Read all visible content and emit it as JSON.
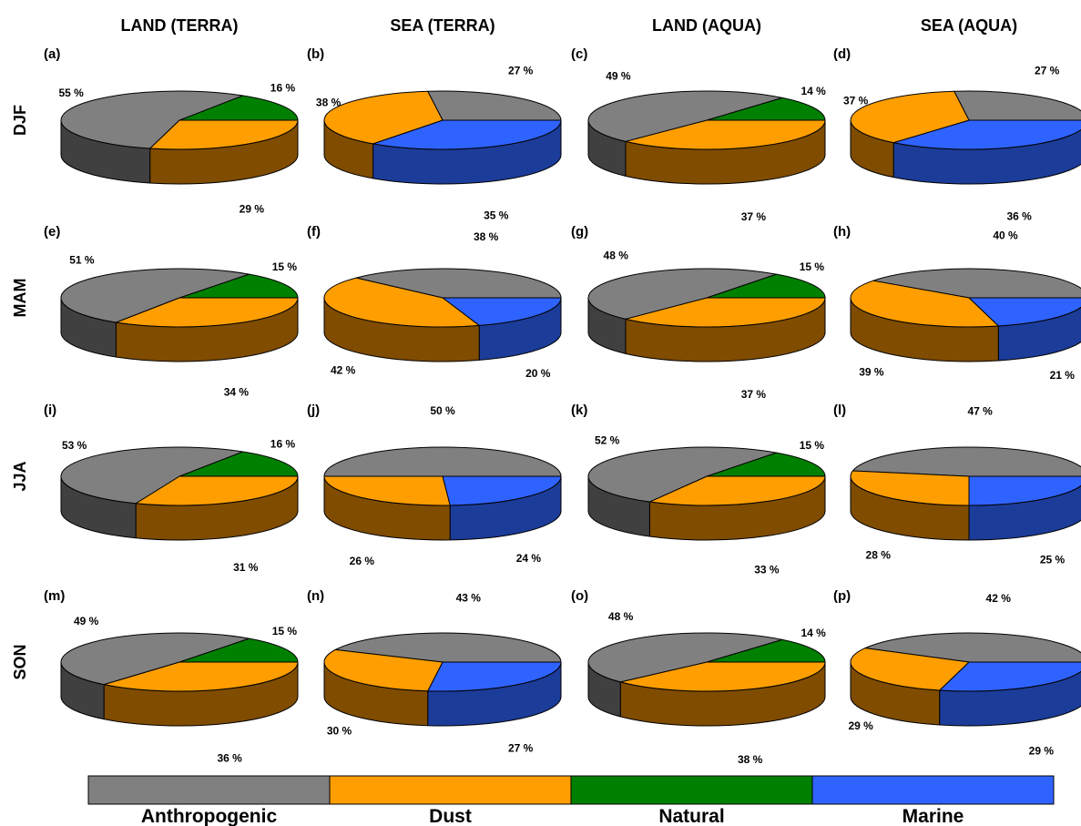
{
  "column_titles": [
    "LAND (TERRA)",
    "SEA (TERRA)",
    "LAND (AQUA)",
    "SEA (AQUA)"
  ],
  "row_titles": [
    "DJF",
    "MAM",
    "JJA",
    "SON"
  ],
  "legend": [
    {
      "key": "anthropogenic",
      "label": "Anthropogenic",
      "color": "#808080"
    },
    {
      "key": "dust",
      "label": "Dust",
      "color": "#ff9e00"
    },
    {
      "key": "natural",
      "label": "Natural",
      "color": "#008000"
    },
    {
      "key": "marine",
      "label": "Marine",
      "color": "#2f63ff"
    }
  ],
  "colors": {
    "anthropogenic_side": "#404040",
    "dust_side": "#7f4c00",
    "outline": "#000000"
  },
  "chart_data": {
    "type": "pie",
    "panels": [
      {
        "letter": "(a)",
        "season": "DJF",
        "region": "LAND (TERRA)",
        "slices": [
          {
            "category": "Dust",
            "value": 29,
            "label": "29 %"
          },
          {
            "category": "Natural",
            "value": 16,
            "label": "16 %"
          },
          {
            "category": "Anthropogenic",
            "value": 55,
            "label": "55 %"
          }
        ]
      },
      {
        "letter": "(b)",
        "season": "DJF",
        "region": "SEA (TERRA)",
        "slices": [
          {
            "category": "Marine",
            "value": 35,
            "label": "35 %"
          },
          {
            "category": "Anthropogenic",
            "value": 27,
            "label": "27 %"
          },
          {
            "category": "Dust",
            "value": 38,
            "label": "38 %"
          }
        ]
      },
      {
        "letter": "(c)",
        "season": "DJF",
        "region": "LAND (AQUA)",
        "slices": [
          {
            "category": "Dust",
            "value": 37,
            "label": "37 %"
          },
          {
            "category": "Natural",
            "value": 14,
            "label": "14 %"
          },
          {
            "category": "Anthropogenic",
            "value": 49,
            "label": "49 %"
          }
        ]
      },
      {
        "letter": "(d)",
        "season": "DJF",
        "region": "SEA (AQUA)",
        "slices": [
          {
            "category": "Marine",
            "value": 36,
            "label": "36 %"
          },
          {
            "category": "Anthropogenic",
            "value": 27,
            "label": "27 %"
          },
          {
            "category": "Dust",
            "value": 37,
            "label": "37 %"
          }
        ]
      },
      {
        "letter": "(e)",
        "season": "MAM",
        "region": "LAND (TERRA)",
        "slices": [
          {
            "category": "Dust",
            "value": 34,
            "label": "34 %"
          },
          {
            "category": "Natural",
            "value": 15,
            "label": "15 %"
          },
          {
            "category": "Anthropogenic",
            "value": 51,
            "label": "51 %"
          }
        ]
      },
      {
        "letter": "(f)",
        "season": "MAM",
        "region": "SEA (TERRA)",
        "slices": [
          {
            "category": "Marine",
            "value": 20,
            "label": "20 %"
          },
          {
            "category": "Anthropogenic",
            "value": 38,
            "label": "38 %"
          },
          {
            "category": "Dust",
            "value": 42,
            "label": "42 %"
          }
        ]
      },
      {
        "letter": "(g)",
        "season": "MAM",
        "region": "LAND (AQUA)",
        "slices": [
          {
            "category": "Dust",
            "value": 37,
            "label": "37 %"
          },
          {
            "category": "Natural",
            "value": 15,
            "label": "15 %"
          },
          {
            "category": "Anthropogenic",
            "value": 48,
            "label": "48 %"
          }
        ]
      },
      {
        "letter": "(h)",
        "season": "MAM",
        "region": "SEA (AQUA)",
        "slices": [
          {
            "category": "Marine",
            "value": 21,
            "label": "21 %"
          },
          {
            "category": "Anthropogenic",
            "value": 40,
            "label": "40 %"
          },
          {
            "category": "Dust",
            "value": 39,
            "label": "39 %"
          }
        ]
      },
      {
        "letter": "(i)",
        "season": "JJA",
        "region": "LAND (TERRA)",
        "slices": [
          {
            "category": "Dust",
            "value": 31,
            "label": "31 %"
          },
          {
            "category": "Natural",
            "value": 16,
            "label": "16 %"
          },
          {
            "category": "Anthropogenic",
            "value": 53,
            "label": "53 %"
          }
        ]
      },
      {
        "letter": "(j)",
        "season": "JJA",
        "region": "SEA (TERRA)",
        "slices": [
          {
            "category": "Marine",
            "value": 24,
            "label": "24 %"
          },
          {
            "category": "Anthropogenic",
            "value": 50,
            "label": "50 %"
          },
          {
            "category": "Dust",
            "value": 26,
            "label": "26 %"
          }
        ]
      },
      {
        "letter": "(k)",
        "season": "JJA",
        "region": "LAND (AQUA)",
        "slices": [
          {
            "category": "Dust",
            "value": 33,
            "label": "33 %"
          },
          {
            "category": "Natural",
            "value": 15,
            "label": "15 %"
          },
          {
            "category": "Anthropogenic",
            "value": 52,
            "label": "52 %"
          }
        ]
      },
      {
        "letter": "(l)",
        "season": "JJA",
        "region": "SEA (AQUA)",
        "slices": [
          {
            "category": "Marine",
            "value": 25,
            "label": "25 %"
          },
          {
            "category": "Anthropogenic",
            "value": 47,
            "label": "47 %"
          },
          {
            "category": "Dust",
            "value": 28,
            "label": "28 %"
          }
        ]
      },
      {
        "letter": "(m)",
        "season": "SON",
        "region": "LAND (TERRA)",
        "slices": [
          {
            "category": "Dust",
            "value": 36,
            "label": "36 %"
          },
          {
            "category": "Natural",
            "value": 15,
            "label": "15 %"
          },
          {
            "category": "Anthropogenic",
            "value": 49,
            "label": "49 %"
          }
        ]
      },
      {
        "letter": "(n)",
        "season": "SON",
        "region": "SEA (TERRA)",
        "slices": [
          {
            "category": "Marine",
            "value": 27,
            "label": "27 %"
          },
          {
            "category": "Anthropogenic",
            "value": 43,
            "label": "43 %"
          },
          {
            "category": "Dust",
            "value": 30,
            "label": "30 %"
          }
        ]
      },
      {
        "letter": "(o)",
        "season": "SON",
        "region": "LAND (AQUA)",
        "slices": [
          {
            "category": "Dust",
            "value": 38,
            "label": "38 %"
          },
          {
            "category": "Natural",
            "value": 14,
            "label": "14 %"
          },
          {
            "category": "Anthropogenic",
            "value": 48,
            "label": "48 %"
          }
        ]
      },
      {
        "letter": "(p)",
        "season": "SON",
        "region": "SEA (AQUA)",
        "slices": [
          {
            "category": "Marine",
            "value": 29,
            "label": "29 %"
          },
          {
            "category": "Anthropogenic",
            "value": 42,
            "label": "42 %"
          },
          {
            "category": "Dust",
            "value": 29,
            "label": "29 %"
          }
        ]
      }
    ]
  }
}
